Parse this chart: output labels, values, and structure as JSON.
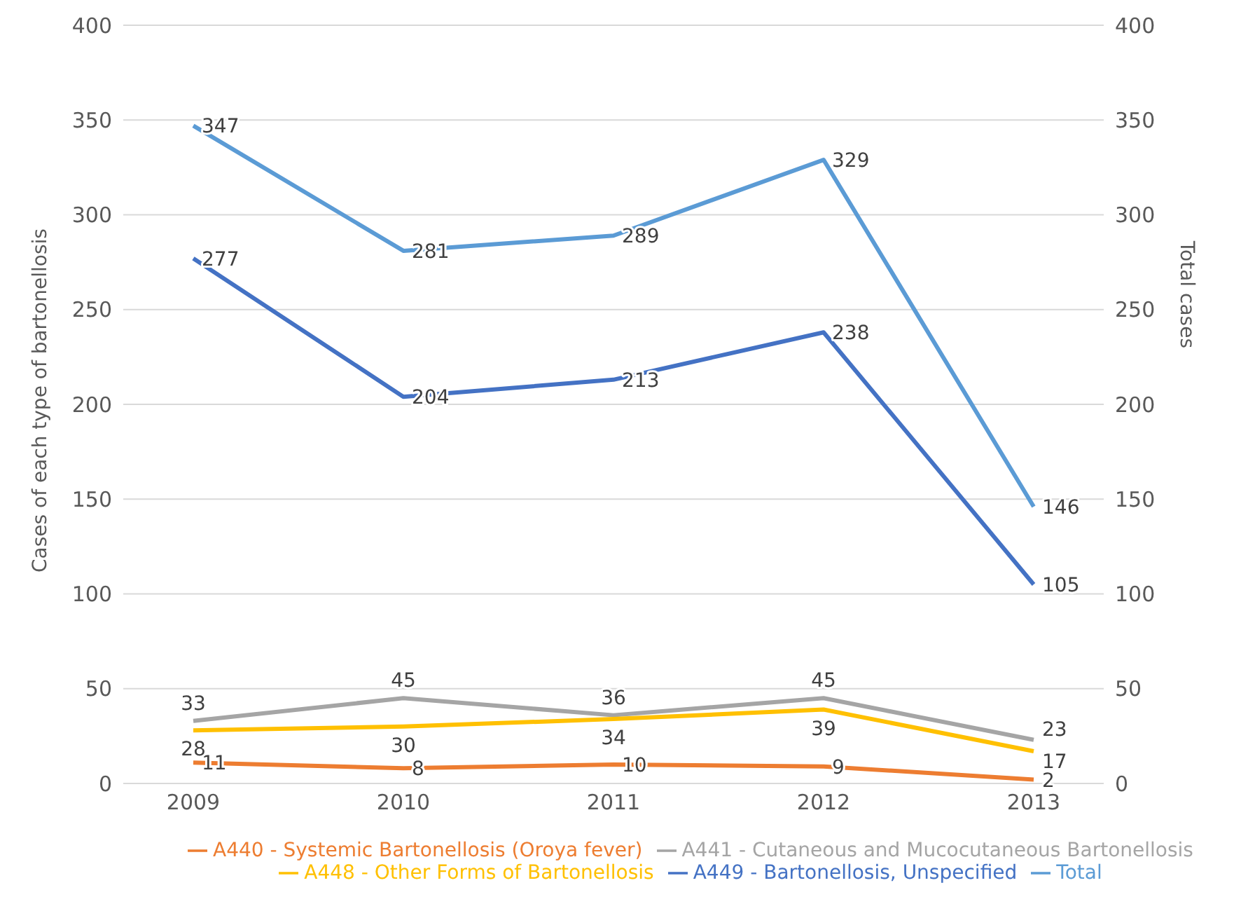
{
  "chart_data": {
    "type": "line",
    "ylabel": "Cases of each type of bartonellosis",
    "y2label": "Total cases",
    "categories": [
      "2009",
      "2010",
      "2011",
      "2012",
      "2013"
    ],
    "series": [
      {
        "name": "A440 - Systemic Bartonellosis (Oroya fever)",
        "color": "#ed7d31",
        "values": [
          11,
          8,
          10,
          9,
          2
        ]
      },
      {
        "name": "A441 - Cutaneous and Mucocutaneous Bartonellosis",
        "color": "#a5a5a5",
        "values": [
          33,
          45,
          36,
          45,
          23
        ]
      },
      {
        "name": "A448 - Other Forms of Bartonellosis",
        "color": "#ffc000",
        "values": [
          28,
          30,
          34,
          39,
          17
        ]
      },
      {
        "name": "A449 - Bartonellosis, Unspecified",
        "color": "#4472c4",
        "values": [
          277,
          204,
          213,
          238,
          105
        ]
      },
      {
        "name": "Total",
        "color": "#5b9bd5",
        "values": [
          347,
          281,
          289,
          329,
          146
        ],
        "axis": "y2"
      }
    ],
    "ylim": [
      0,
      400
    ],
    "yticks": [
      0,
      50,
      100,
      150,
      200,
      250,
      300,
      350,
      400
    ],
    "y2lim": [
      0,
      400
    ],
    "y2ticks": [
      0,
      50,
      100,
      150,
      200,
      250,
      300,
      350,
      400
    ],
    "grid": "y",
    "legend": "bottom",
    "data_labels": true,
    "marker": "none",
    "line_style": "solid"
  }
}
